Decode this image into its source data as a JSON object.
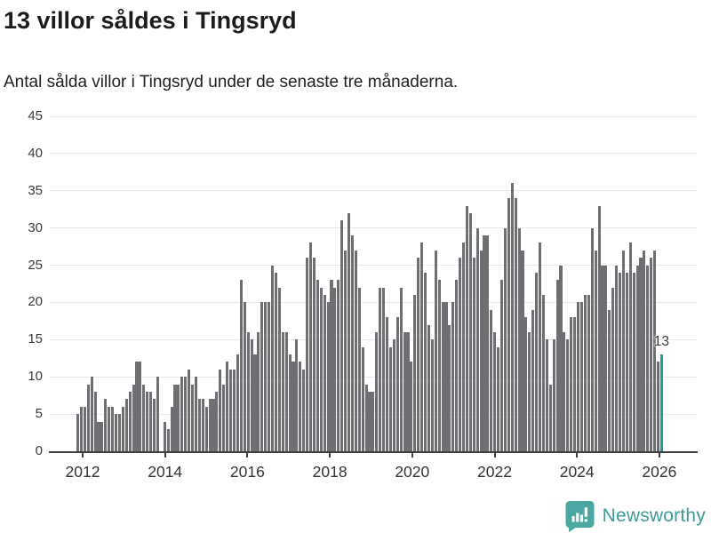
{
  "header": {
    "title": "13 villor såldes i Tingsryd",
    "subtitle": "Antal sålda villor i Tingsryd under de senaste tre månaderna."
  },
  "chart_data": {
    "type": "bar",
    "title": "13 villor såldes i Tingsryd",
    "subtitle": "Antal sålda villor i Tingsryd under de senaste tre månaderna.",
    "frequency": "monthly",
    "x_start": "2012-01",
    "x_end": "2026-01",
    "ylim": [
      0,
      45
    ],
    "y_ticks": [
      0,
      5,
      10,
      15,
      20,
      25,
      30,
      35,
      40,
      45
    ],
    "x_tick_labels": [
      "2012",
      "2014",
      "2016",
      "2018",
      "2020",
      "2022",
      "2024",
      "2026"
    ],
    "grid": true,
    "legend": "none",
    "bar_color": "#6E6E73",
    "highlight_color": "#1D9D9B",
    "highlight_last": true,
    "annotation": {
      "text": "13",
      "value": 13
    },
    "values": [
      5,
      6,
      6,
      9,
      10,
      8,
      4,
      4,
      7,
      6,
      6,
      5,
      5,
      6,
      7,
      8,
      9,
      12,
      12,
      9,
      8,
      8,
      7,
      10,
      0,
      4,
      3,
      6,
      9,
      9,
      10,
      10,
      11,
      9,
      10,
      7,
      7,
      6,
      7,
      7,
      8,
      11,
      9,
      12,
      11,
      11,
      13,
      23,
      20,
      16,
      15,
      13,
      16,
      20,
      20,
      20,
      25,
      24,
      22,
      16,
      16,
      13,
      12,
      15,
      12,
      11,
      26,
      28,
      26,
      23,
      22,
      21,
      20,
      23,
      22,
      23,
      31,
      27,
      32,
      29,
      27,
      22,
      14,
      9,
      8,
      8,
      16,
      22,
      22,
      18,
      14,
      15,
      18,
      22,
      16,
      16,
      12,
      21,
      26,
      28,
      24,
      17,
      15,
      27,
      23,
      20,
      20,
      17,
      20,
      23,
      26,
      28,
      33,
      32,
      26,
      30,
      27,
      29,
      29,
      19,
      16,
      14,
      23,
      30,
      34,
      36,
      34,
      30,
      27,
      18,
      16,
      19,
      24,
      28,
      21,
      15,
      9,
      15,
      23,
      25,
      16,
      15,
      18,
      18,
      20,
      20,
      21,
      21,
      30,
      27,
      33,
      25,
      25,
      19,
      22,
      25,
      24,
      27,
      24,
      28,
      24,
      25,
      26,
      27,
      25,
      26,
      27,
      12,
      13
    ]
  },
  "footer": {
    "brand": "Newsworthy",
    "brand_color": "#3E9C99",
    "logo_icon": "bar-chart-speech-bubble"
  }
}
